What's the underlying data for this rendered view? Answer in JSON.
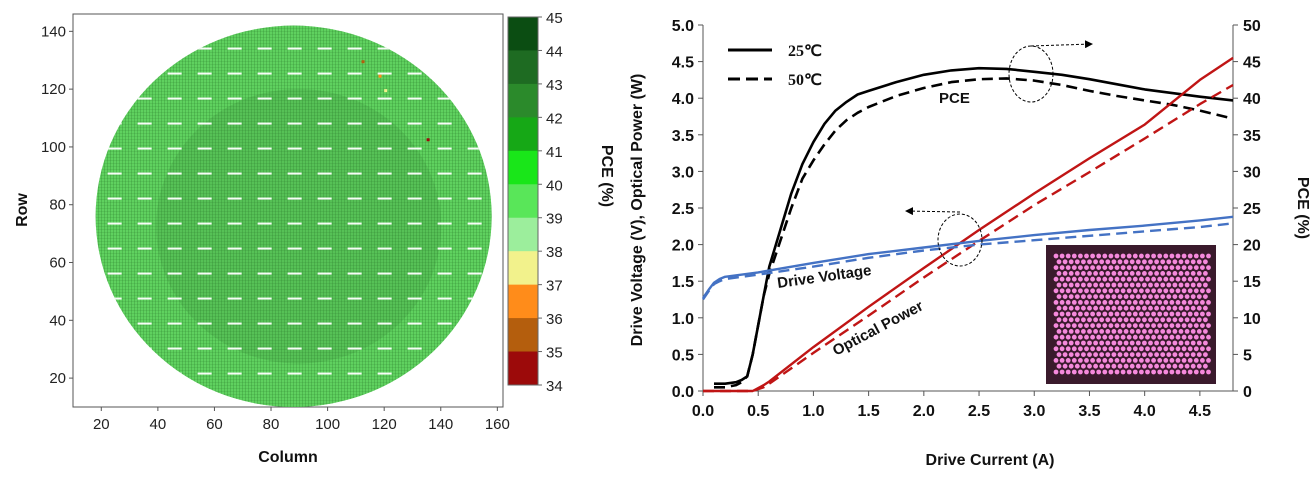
{
  "chart_data": [
    {
      "type": "heatmap",
      "xlabel": "Column",
      "ylabel": "Row",
      "xticks": [
        "20",
        "40",
        "60",
        "80",
        "100",
        "120",
        "140",
        "160"
      ],
      "yticks": [
        "20",
        "40",
        "60",
        "80",
        "100",
        "120",
        "140"
      ],
      "xlim": [
        10,
        162
      ],
      "ylim": [
        10,
        146
      ],
      "wafer": {
        "center_col": 88,
        "center_row": 76,
        "radius_cols": 70,
        "radius_rows": 66
      },
      "colorbar": {
        "label": "PCE (%)",
        "levels": [
          "45",
          "44",
          "43",
          "42",
          "41",
          "40",
          "39",
          "38",
          "37",
          "36",
          "35",
          "34"
        ],
        "colors": [
          "#0b4d12",
          "#1e6b22",
          "#2b8a2b",
          "#16a816",
          "#19e619",
          "#59e659",
          "#9cee9c",
          "#f2f28c",
          "#ff8c1a",
          "#b45e0d",
          "#7a3a0a",
          "#9c0a0a"
        ]
      },
      "dominant_pce_range": "40-42"
    },
    {
      "type": "line",
      "xlabel": "Drive Current (A)",
      "ylabel": "Drive Voltage (V), Optical Power (W)",
      "y2label": "PCE (%)",
      "xlim": [
        0,
        4.8
      ],
      "ylim": [
        0,
        5
      ],
      "y2lim": [
        0,
        50
      ],
      "xticks": [
        "0.0",
        "0.5",
        "1.0",
        "1.5",
        "2.0",
        "2.5",
        "3.0",
        "3.5",
        "4.0",
        "4.5"
      ],
      "yticks": [
        "0.0",
        "0.5",
        "1.0",
        "1.5",
        "2.0",
        "2.5",
        "3.0",
        "3.5",
        "4.0",
        "4.5",
        "5.0"
      ],
      "y2ticks": [
        "0",
        "5",
        "10",
        "15",
        "20",
        "25",
        "30",
        "35",
        "40",
        "45",
        "50"
      ],
      "legend": {
        "position": "top-left",
        "entries": [
          {
            "label": "25℃",
            "style": "solid"
          },
          {
            "label": "50℃",
            "style": "dashed"
          }
        ]
      },
      "annotations": [
        "PCE",
        "Drive Voltage",
        "Optical Power"
      ],
      "series": [
        {
          "axis": "right",
          "temp": "25℃",
          "style": "solid",
          "color": "#000000",
          "x": [
            0.1,
            0.2,
            0.3,
            0.35,
            0.4,
            0.45,
            0.5,
            0.55,
            0.6,
            0.7,
            0.8,
            0.9,
            1.0,
            1.1,
            1.2,
            1.3,
            1.4,
            1.5,
            1.75,
            2.0,
            2.25,
            2.5,
            2.75,
            3.0,
            3.25,
            3.5,
            3.75,
            4.0,
            4.25,
            4.5,
            4.8
          ],
          "y": [
            1,
            1,
            1.2,
            1.5,
            2,
            5,
            9,
            13,
            17,
            22,
            27,
            31,
            34,
            36.5,
            38.3,
            39.5,
            40.5,
            41,
            42.2,
            43.2,
            43.8,
            44.1,
            44,
            43.6,
            43.2,
            42.6,
            41.9,
            41.2,
            40.7,
            40.2,
            39.7
          ]
        },
        {
          "axis": "right",
          "temp": "50℃",
          "style": "dashed",
          "color": "#000000",
          "x": [
            0.1,
            0.2,
            0.3,
            0.35,
            0.4,
            0.45,
            0.5,
            0.55,
            0.6,
            0.7,
            0.8,
            0.9,
            1.0,
            1.1,
            1.2,
            1.3,
            1.4,
            1.5,
            1.75,
            2.0,
            2.25,
            2.5,
            2.75,
            3.0,
            3.25,
            3.5,
            3.75,
            4.0,
            4.25,
            4.5,
            4.8
          ],
          "y": [
            0.5,
            0.5,
            0.8,
            1.2,
            2,
            5,
            9,
            13,
            16,
            20.5,
            25,
            29,
            31.5,
            33.7,
            35.6,
            37,
            38,
            38.8,
            40.3,
            41.4,
            42.2,
            42.6,
            42.7,
            42.4,
            41.8,
            41,
            40.3,
            39.7,
            39.1,
            38.3,
            37.2
          ]
        },
        {
          "axis": "left",
          "temp": "25℃",
          "style": "solid",
          "color": "#c01515",
          "x": [
            0,
            0.3,
            0.45,
            0.55,
            0.6,
            1.0,
            1.5,
            2.0,
            2.5,
            3.0,
            3.5,
            4.0,
            4.5,
            4.8
          ],
          "y": [
            0,
            0,
            0,
            0.08,
            0.13,
            0.6,
            1.15,
            1.68,
            2.2,
            2.7,
            3.18,
            3.64,
            4.25,
            4.55
          ]
        },
        {
          "axis": "left",
          "temp": "50℃",
          "style": "dashed",
          "color": "#c01515",
          "x": [
            0,
            0.3,
            0.45,
            0.55,
            0.6,
            1.0,
            1.5,
            2.0,
            2.5,
            3.0,
            3.5,
            4.0,
            4.5,
            4.8
          ],
          "y": [
            0,
            0,
            0,
            0.05,
            0.1,
            0.52,
            1.03,
            1.55,
            2.05,
            2.54,
            2.99,
            3.45,
            3.92,
            4.18
          ]
        },
        {
          "axis": "left",
          "temp": "25℃",
          "style": "solid",
          "color": "#4472c4",
          "x": [
            0,
            0.05,
            0.1,
            0.15,
            0.2,
            0.5,
            1.0,
            1.5,
            2.0,
            2.5,
            3.0,
            3.5,
            4.0,
            4.5,
            4.8
          ],
          "y": [
            1.27,
            1.38,
            1.48,
            1.53,
            1.56,
            1.62,
            1.75,
            1.87,
            1.96,
            2.05,
            2.13,
            2.2,
            2.26,
            2.33,
            2.38
          ]
        },
        {
          "axis": "left",
          "temp": "50℃",
          "style": "dashed",
          "color": "#4472c4",
          "x": [
            0,
            0.05,
            0.1,
            0.15,
            0.2,
            0.5,
            1.0,
            1.5,
            2.0,
            2.5,
            3.0,
            3.5,
            4.0,
            4.5,
            4.8
          ],
          "y": [
            1.25,
            1.36,
            1.46,
            1.5,
            1.53,
            1.59,
            1.7,
            1.82,
            1.92,
            2.0,
            2.06,
            2.12,
            2.18,
            2.24,
            2.29
          ]
        }
      ]
    }
  ]
}
